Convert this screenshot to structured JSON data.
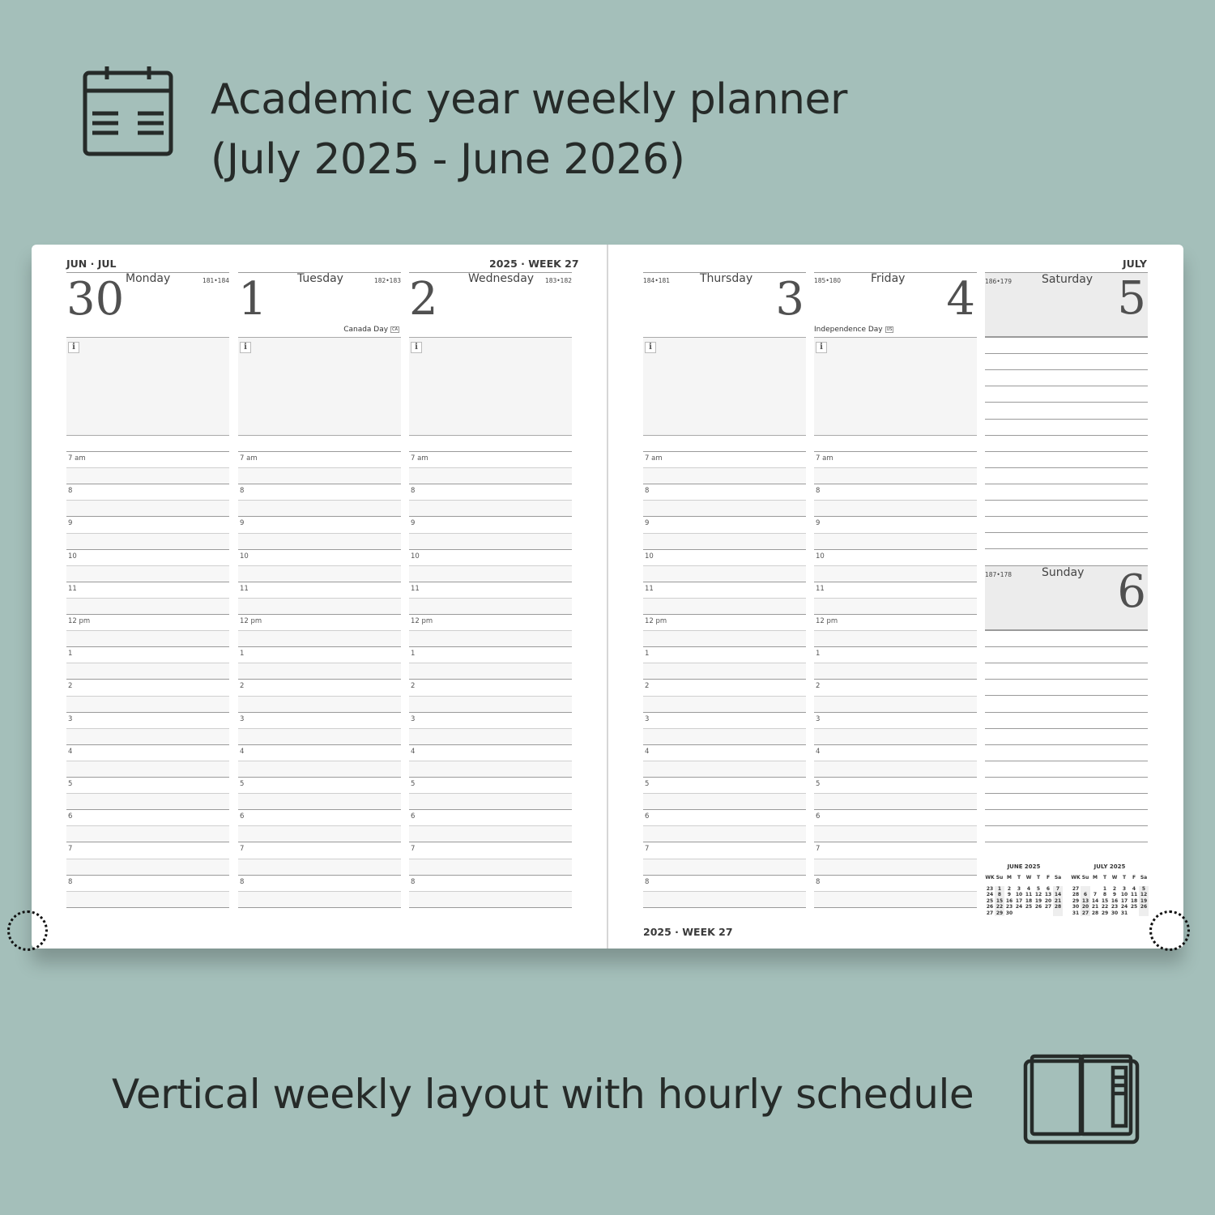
{
  "headline": "Academic year weekly planner",
  "headline2": "(July 2025 - June 2026)",
  "footer_caption": "Vertical weekly layout with hourly schedule",
  "icons": [
    "calendar-icon",
    "open-planner-icon",
    "info-icon"
  ],
  "colors": {
    "background": "#a4bfba",
    "text": "#262b29"
  },
  "left_page": {
    "months": "JUN · JUL",
    "week": "2025 · WEEK 27"
  },
  "right_page": {
    "month": "JULY",
    "week": "2025 · WEEK 27"
  },
  "hours": [
    "7 am",
    "8",
    "9",
    "10",
    "11",
    "12 pm",
    "1",
    "2",
    "3",
    "4",
    "5",
    "6",
    "7",
    "8"
  ],
  "days": [
    {
      "weekday": "Monday",
      "date": "30",
      "count": "181•184",
      "holiday": "",
      "code": ""
    },
    {
      "weekday": "Tuesday",
      "date": "1",
      "count": "182•183",
      "holiday": "Canada Day",
      "code": "CA"
    },
    {
      "weekday": "Wednesday",
      "date": "2",
      "count": "183•182",
      "holiday": "",
      "code": ""
    },
    {
      "weekday": "Thursday",
      "date": "3",
      "count": "184•181",
      "holiday": "",
      "code": ""
    },
    {
      "weekday": "Friday",
      "date": "4",
      "count": "185•180",
      "holiday": "Independence Day",
      "code": "US"
    },
    {
      "weekday": "Saturday",
      "date": "5",
      "count": "186•179"
    },
    {
      "weekday": "Sunday",
      "date": "6",
      "count": "187•178"
    }
  ],
  "mini_calendars": [
    {
      "title": "JUNE  2025",
      "head": [
        "WK",
        "Su",
        "M",
        "T",
        "W",
        "T",
        "F",
        "Sa"
      ],
      "rows": [
        [
          "23",
          "1",
          "2",
          "3",
          "4",
          "5",
          "6",
          "7"
        ],
        [
          "24",
          "8",
          "9",
          "10",
          "11",
          "12",
          "13",
          "14"
        ],
        [
          "25",
          "15",
          "16",
          "17",
          "18",
          "19",
          "20",
          "21"
        ],
        [
          "26",
          "22",
          "23",
          "24",
          "25",
          "26",
          "27",
          "28"
        ],
        [
          "27",
          "29",
          "30",
          "",
          "",
          "",
          "",
          ""
        ]
      ]
    },
    {
      "title": "JULY  2025",
      "head": [
        "WK",
        "Su",
        "M",
        "T",
        "W",
        "T",
        "F",
        "Sa"
      ],
      "rows": [
        [
          "27",
          "",
          "",
          "1",
          "2",
          "3",
          "4",
          "5"
        ],
        [
          "28",
          "6",
          "7",
          "8",
          "9",
          "10",
          "11",
          "12"
        ],
        [
          "29",
          "13",
          "14",
          "15",
          "16",
          "17",
          "18",
          "19"
        ],
        [
          "30",
          "20",
          "21",
          "22",
          "23",
          "24",
          "25",
          "26"
        ],
        [
          "31",
          "27",
          "28",
          "29",
          "30",
          "31",
          "",
          ""
        ]
      ]
    }
  ]
}
